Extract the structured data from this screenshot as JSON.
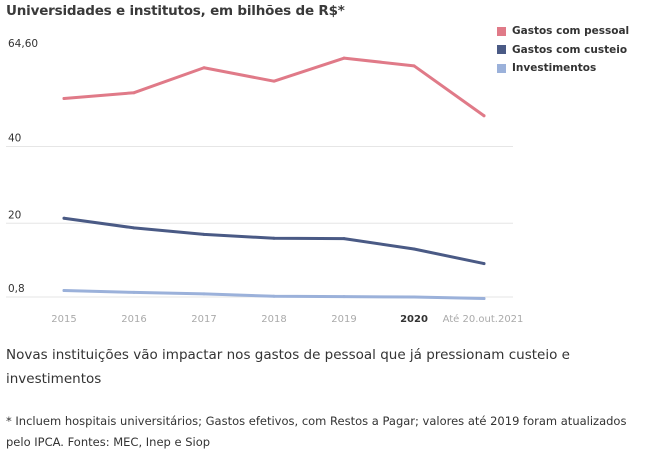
{
  "chart_data": {
    "type": "line",
    "title": "Universidades e institutos, em bilhões de R$*",
    "categories": [
      "2015",
      "2016",
      "2017",
      "2018",
      "2019",
      "2020",
      "Até 20.out.2021"
    ],
    "highlight_category": "2020",
    "y_tick_labels": [
      "64,60",
      "40",
      "20",
      "0,8"
    ],
    "y_tick_values": [
      64.6,
      40,
      20,
      0.8
    ],
    "grid": true,
    "legend_position": "top-right",
    "series": [
      {
        "name": "Gastos com pessoal",
        "color": "#e07a88",
        "values": [
          52.5,
          54.0,
          60.5,
          57.0,
          63.0,
          61.0,
          48.0
        ]
      },
      {
        "name": "Gastos com custeio",
        "color": "#4a5a85",
        "values": [
          21.3,
          18.8,
          17.1,
          16.1,
          16.0,
          13.3,
          9.5
        ]
      },
      {
        "name": "Investimentos",
        "color": "#9bb1da",
        "values": [
          2.5,
          2.0,
          1.6,
          1.0,
          0.9,
          0.8,
          0.4
        ]
      }
    ]
  },
  "caption": "Novas instituições vão impactar nos gastos de pessoal que já pressionam custeio e investimentos",
  "footnote": "* Incluem hospitais universitários; Gastos efetivos, com Restos a Pagar; valores até 2019 foram atualizados pelo IPCA. Fontes: MEC, Inep e Siop"
}
